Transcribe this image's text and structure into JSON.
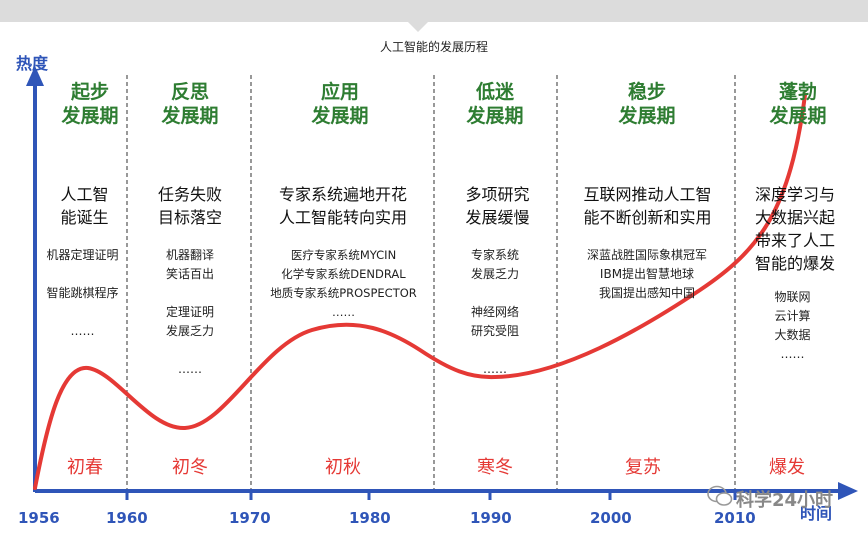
{
  "title": "人工智能的发展历程",
  "axis": {
    "y_label": "热度",
    "x_label": "时间"
  },
  "years": [
    {
      "label": "1956"
    },
    {
      "label": "1960"
    },
    {
      "label": "1970"
    },
    {
      "label": "1980"
    },
    {
      "label": "1990"
    },
    {
      "label": "2000"
    },
    {
      "label": "2010"
    }
  ],
  "periods": [
    {
      "phase": [
        "起步",
        "发展期"
      ],
      "event": [
        "人工智",
        "能诞生"
      ],
      "details": "机器定理证明\n\n智能跳棋程序\n\n……",
      "season": "初春"
    },
    {
      "phase": [
        "反思",
        "发展期"
      ],
      "event": [
        "任务失败",
        "目标落空"
      ],
      "details": "机器翻译\n笑话百出\n\n定理证明\n发展乏力\n\n……",
      "season": "初冬"
    },
    {
      "phase": [
        "应用",
        "发展期"
      ],
      "event": [
        "专家系统遍地开花",
        "人工智能转向实用"
      ],
      "details": "医疗专家系统MYCIN\n化学专家系统DENDRAL\n地质专家系统PROSPECTOR\n……",
      "season": "初秋"
    },
    {
      "phase": [
        "低迷",
        "发展期"
      ],
      "event": [
        "多项研究",
        "发展缓慢"
      ],
      "details": "专家系统\n发展乏力\n\n神经网络\n研究受阻\n\n……",
      "season": "寒冬"
    },
    {
      "phase": [
        "稳步",
        "发展期"
      ],
      "event": [
        "互联网推动人工智",
        "能不断创新和实用"
      ],
      "details": "深蓝战胜国际象棋冠军\nIBM提出智慧地球\n我国提出感知中国",
      "season": "复苏"
    },
    {
      "phase": [
        "蓬勃",
        "发展期"
      ],
      "event": [
        "深度学习与",
        "大数据兴起",
        "带来了人工",
        "智能的爆发"
      ],
      "details": "物联网\n云计算\n大数据\n……",
      "season": "爆发"
    }
  ],
  "watermark": "科学24小时",
  "colors": {
    "axis": "#2f55b8",
    "curve": "#e53935",
    "phase": "#2e7d32",
    "season": "#e53935",
    "topbar": "#d9d9d9"
  }
}
